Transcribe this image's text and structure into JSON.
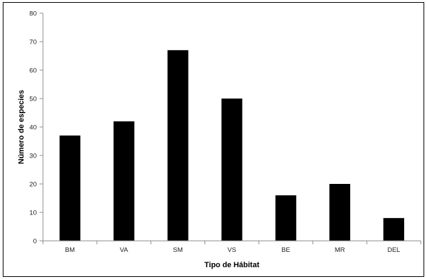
{
  "chart_data": {
    "type": "bar",
    "title": "",
    "xlabel": "Tipo de Hábitat",
    "ylabel": "Número de especies",
    "categories": [
      "BM",
      "VA",
      "SM",
      "VS",
      "BE",
      "MR",
      "DEL"
    ],
    "values": [
      37,
      42,
      67,
      50,
      16,
      20,
      8
    ],
    "ylim": [
      0,
      80
    ],
    "yticks": [
      0,
      10,
      20,
      30,
      40,
      50,
      60,
      70,
      80
    ],
    "grid": false,
    "legend": "none",
    "bar_color": "#000000",
    "axis_color": "#8c8c8c"
  }
}
